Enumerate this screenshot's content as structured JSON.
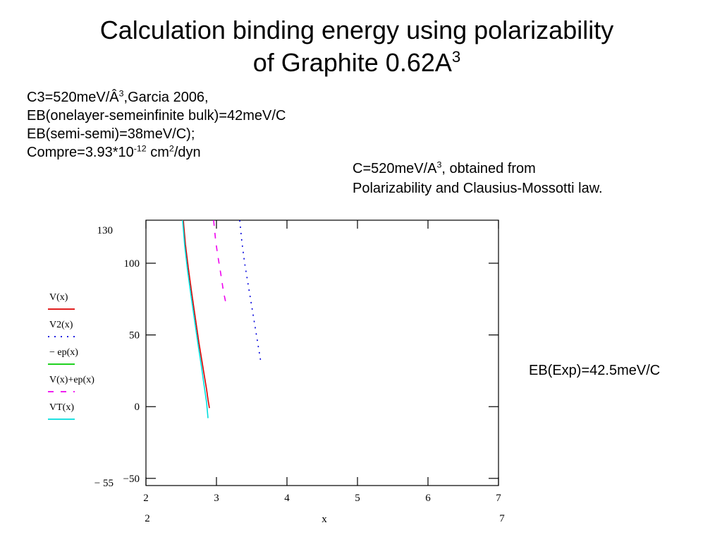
{
  "title": {
    "line1": "Calculation binding energy using polarizability",
    "line2": "of Graphite 0.62A",
    "line2_sup": "3"
  },
  "notes": {
    "c3_a": "C3=520meV/Â",
    "c3_sup": "3",
    "c3_b": ",Garcia 2006,",
    "eb_onelayer": "EB(onelayer-semeinfinite bulk)=42meV/C",
    "eb_semi": "EB(semi-semi)=38meV/C);",
    "compre_a": "Compre=3.93*10",
    "compre_sup1": "-12",
    "compre_b": " cm",
    "compre_sup2": "2",
    "compre_c": "/dyn"
  },
  "note_right": {
    "line1_a": "C=520meV/A",
    "line1_sup": "3",
    "line1_b": ", obtained from",
    "line2": "Polarizability and Clausius-Mossotti law."
  },
  "eb_exp": "EB(Exp)=42.5meV/C",
  "chart_data": {
    "type": "line",
    "xlabel": "x",
    "xlim": [
      2,
      7
    ],
    "ylim": [
      -55,
      130
    ],
    "x_ticks": [
      "2",
      "3",
      "4",
      "5",
      "6",
      "7"
    ],
    "y_ticks": [
      "100",
      "50",
      "0",
      "−50"
    ],
    "x_range_labels": {
      "min": "2",
      "max": "7"
    },
    "y_range_labels": {
      "max": "130",
      "min": "− 55"
    },
    "grid": false,
    "legend_placement": "left",
    "series": [
      {
        "name": "V(x)",
        "color": "#dd0000",
        "dash": "solid",
        "x": [
          2.53,
          2.56,
          2.6,
          2.65,
          2.7,
          2.75,
          2.8,
          2.84,
          2.86,
          2.88,
          2.9
        ],
        "y": [
          130,
          113,
          97,
          79,
          62,
          45,
          30,
          18,
          12,
          5,
          -1
        ]
      },
      {
        "name": "V2(x)",
        "color": "#0000dd",
        "dash": "dot",
        "x": [
          3.33,
          3.36,
          3.4,
          3.45,
          3.5,
          3.55,
          3.6,
          3.63
        ],
        "y": [
          130,
          115,
          100,
          85,
          70,
          55,
          40,
          31
        ]
      },
      {
        "name": "− ep(x)",
        "color": "#00cc00",
        "dash": "solid",
        "x": [],
        "y": []
      },
      {
        "name": "V(x)+ep(x)",
        "color": "#ee00ee",
        "dash": "dash",
        "x": [
          2.96,
          2.99,
          3.02,
          3.06,
          3.1,
          3.13
        ],
        "y": [
          130,
          115,
          105,
          93,
          80,
          73
        ]
      },
      {
        "name": "VT(x)",
        "color": "#00dddd",
        "dash": "solid",
        "x": [
          2.52,
          2.55,
          2.59,
          2.64,
          2.69,
          2.74,
          2.79,
          2.83,
          2.86,
          2.88
        ],
        "y": [
          130,
          112,
          95,
          77,
          60,
          43,
          27,
          13,
          3,
          -8
        ]
      }
    ]
  }
}
